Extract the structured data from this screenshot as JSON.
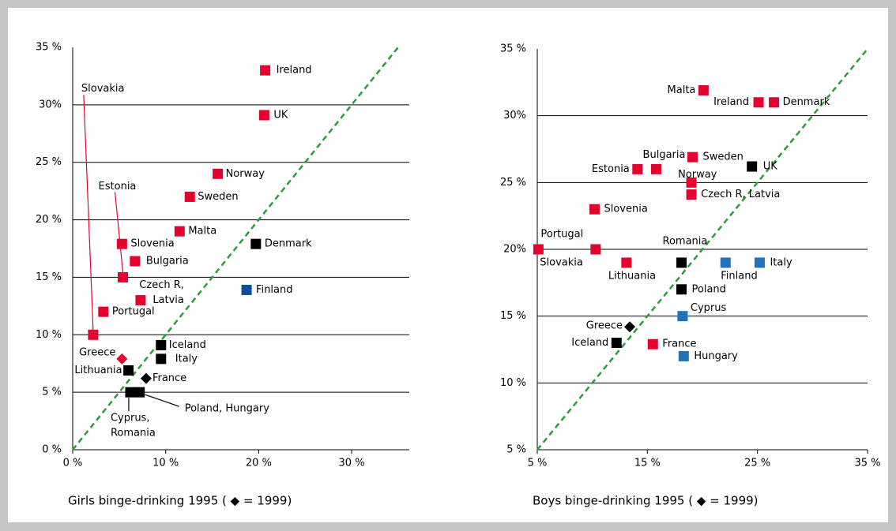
{
  "chart_data": [
    {
      "type": "scatter",
      "x_label": "Girls binge-drinking 1995 ( ◆ = 1999)",
      "xlim": [
        0,
        36.2
      ],
      "ylim": [
        0,
        35
      ],
      "xticks": [
        {
          "value": 0,
          "label": "0 %"
        },
        {
          "value": 10,
          "label": "10 %"
        },
        {
          "value": 20,
          "label": "20 %"
        },
        {
          "value": 30,
          "label": "30 %"
        }
      ],
      "yticks": [
        {
          "value": 0,
          "label": "0 %"
        },
        {
          "value": 5,
          "label": "5 %"
        },
        {
          "value": 10,
          "label": "10 %"
        },
        {
          "value": 15,
          "label": "15 %"
        },
        {
          "value": 20,
          "label": "20 %"
        },
        {
          "value": 25,
          "label": "25 %"
        },
        {
          "value": 30,
          "label": "30%"
        },
        {
          "value": 35,
          "label": "35 %"
        }
      ],
      "grid": true,
      "diagonal_color": "#2a9d3a",
      "series": [
        {
          "color": "#e4032e",
          "marker": "square",
          "x": [
            20.7,
            20.6,
            15.6,
            12.6,
            11.5,
            5.3,
            6.7,
            5.4,
            7.3,
            3.3,
            2.2
          ],
          "values": [
            33,
            29.1,
            24,
            22,
            19,
            17.9,
            16.4,
            15,
            13,
            12,
            10
          ],
          "labels": [
            "Ireland",
            "UK",
            "Norway",
            "Sweden",
            "Malta",
            "Slovenia",
            "Bulgaria",
            "Estonia",
            [
              "Czech R,",
              "Latvia"
            ],
            "Portugal",
            "Slovakia"
          ]
        },
        {
          "color": "#000000",
          "marker": "square",
          "x": [
            19.7,
            9.5,
            9.5,
            6.0,
            6.2,
            7.2
          ],
          "values": [
            17.9,
            9.1,
            7.9,
            6.9,
            5,
            5
          ],
          "labels": [
            "Denmark",
            "Iceland",
            "Italy",
            "Lithuania",
            [
              "Cyprus,",
              "Romania"
            ],
            "Poland, Hungary"
          ]
        },
        {
          "color": "#0a4f9c",
          "marker": "square",
          "x": [
            18.7
          ],
          "values": [
            13.9
          ],
          "labels": [
            "Finland"
          ]
        },
        {
          "color": "#e4032e",
          "marker": "diamond",
          "x": [
            5.3
          ],
          "values": [
            7.9
          ],
          "labels": [
            "Greece"
          ]
        },
        {
          "color": "#000000",
          "marker": "diamond",
          "x": [
            7.9
          ],
          "values": [
            6.2
          ],
          "labels": [
            "France"
          ]
        }
      ]
    },
    {
      "type": "scatter",
      "x_label": "Boys binge-drinking 1995 ( ◆ = 1999)",
      "xlim": [
        5,
        35
      ],
      "ylim": [
        5,
        35
      ],
      "xticks": [
        {
          "value": 5,
          "label": "5 %"
        },
        {
          "value": 15,
          "label": "15 %"
        },
        {
          "value": 25,
          "label": "25 %"
        },
        {
          "value": 35,
          "label": "35 %"
        }
      ],
      "yticks": [
        {
          "value": 5,
          "label": "5 %"
        },
        {
          "value": 10,
          "label": "10 %"
        },
        {
          "value": 15,
          "label": "15 %"
        },
        {
          "value": 20,
          "label": "20%"
        },
        {
          "value": 25,
          "label": "25 %"
        },
        {
          "value": 30,
          "label": "30%"
        },
        {
          "value": 35,
          "label": "35 %"
        }
      ],
      "grid": true,
      "diagonal_color": "#2a9d3a",
      "series": [
        {
          "color": "#e4032e",
          "marker": "square",
          "x": [
            20.1,
            25.1,
            26.5,
            19.1,
            15.8,
            14.1,
            19.0,
            19.0,
            10.2,
            5.1,
            10.3,
            13.1,
            15.5
          ],
          "values": [
            31.9,
            31,
            31,
            26.9,
            26,
            26,
            25,
            24.1,
            23,
            20,
            20,
            19,
            12.9
          ],
          "labels": [
            "Malta",
            "Ireland",
            "Denmark",
            "Sweden",
            "Bulgaria",
            "Estonia",
            "Norway",
            "Czech R, Latvia",
            "Slovenia",
            "Portugal",
            "Slovakia",
            "Lithuania",
            "France"
          ]
        },
        {
          "color": "#000000",
          "marker": "square",
          "x": [
            24.5,
            18.1,
            18.1,
            12.2
          ],
          "values": [
            26.2,
            19,
            17,
            13
          ],
          "labels": [
            "UK",
            "Romania",
            "Poland",
            "Iceland"
          ]
        },
        {
          "color": "#2073b8",
          "marker": "square",
          "x": [
            22.1,
            25.2,
            18.2,
            18.3
          ],
          "values": [
            19,
            19,
            15,
            12
          ],
          "labels": [
            "Finland",
            "Italy",
            "Cyprus",
            "Hungary"
          ]
        },
        {
          "color": "#000000",
          "marker": "diamond",
          "x": [
            13.4
          ],
          "values": [
            14.2
          ],
          "labels": [
            "Greece"
          ]
        }
      ]
    }
  ]
}
